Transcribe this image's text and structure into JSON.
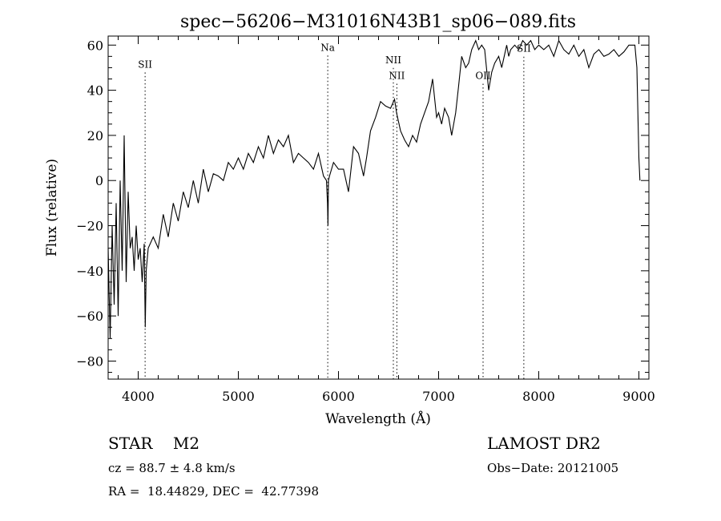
{
  "chart_data": {
    "type": "line",
    "title": "spec−56206−M31016N43B1_sp06−089.fits",
    "xlabel": "Wavelength (Å)",
    "ylabel": "Flux (relative)",
    "xlim": [
      3700,
      9100
    ],
    "ylim": [
      -88,
      64
    ],
    "x_ticks": [
      4000,
      5000,
      6000,
      7000,
      8000,
      9000
    ],
    "x_tick_labels": [
      "4000",
      "5000",
      "6000",
      "7000",
      "8000",
      "9000"
    ],
    "y_ticks": [
      -80,
      -60,
      -40,
      -20,
      0,
      20,
      40,
      60
    ],
    "y_tick_labels": [
      "−80",
      "−60",
      "−40",
      "−20",
      "0",
      "20",
      "40",
      "60"
    ],
    "grid": false,
    "series": [
      {
        "x": [
          3700,
          3720,
          3740,
          3760,
          3780,
          3800,
          3820,
          3840,
          3860,
          3880,
          3900,
          3920,
          3940,
          3960,
          3980,
          4000,
          4020,
          4040,
          4060,
          4070,
          4080,
          4100,
          4150,
          4200,
          4250,
          4300,
          4350,
          4400,
          4450,
          4500,
          4550,
          4600,
          4650,
          4700,
          4750,
          4800,
          4850,
          4900,
          4950,
          5000,
          5050,
          5100,
          5150,
          5200,
          5250,
          5300,
          5350,
          5400,
          5450,
          5500,
          5550,
          5600,
          5650,
          5700,
          5750,
          5800,
          5850,
          5880,
          5890,
          5895,
          5900,
          5910,
          5950,
          6000,
          6050,
          6100,
          6150,
          6200,
          6250,
          6280,
          6320,
          6370,
          6420,
          6470,
          6520,
          6560,
          6580,
          6620,
          6660,
          6700,
          6740,
          6780,
          6820,
          6860,
          6900,
          6940,
          6980,
          7000,
          7030,
          7060,
          7100,
          7130,
          7170,
          7200,
          7230,
          7270,
          7300,
          7330,
          7370,
          7400,
          7430,
          7460,
          7500,
          7530,
          7560,
          7600,
          7630,
          7660,
          7680,
          7700,
          7720,
          7760,
          7800,
          7840,
          7880,
          7920,
          7960,
          8000,
          8050,
          8100,
          8150,
          8200,
          8250,
          8300,
          8350,
          8400,
          8450,
          8500,
          8550,
          8600,
          8650,
          8700,
          8750,
          8800,
          8850,
          8900,
          8930,
          8960,
          8980,
          9000,
          9010
        ],
        "values": [
          -30,
          -70,
          -20,
          -55,
          -10,
          -60,
          0,
          -40,
          20,
          -45,
          -5,
          -30,
          -25,
          -40,
          -20,
          -35,
          -30,
          -45,
          -28,
          -65,
          -40,
          -30,
          -25,
          -30,
          -15,
          -25,
          -10,
          -18,
          -5,
          -12,
          0,
          -10,
          5,
          -5,
          3,
          2,
          0,
          8,
          5,
          10,
          5,
          12,
          8,
          15,
          10,
          20,
          12,
          18,
          15,
          20,
          8,
          12,
          10,
          8,
          5,
          12,
          2,
          0,
          -10,
          -20,
          0,
          2,
          8,
          5,
          5,
          -5,
          15,
          12,
          2,
          10,
          22,
          28,
          35,
          33,
          32,
          36,
          30,
          22,
          18,
          15,
          20,
          17,
          25,
          30,
          35,
          45,
          28,
          30,
          25,
          32,
          28,
          20,
          30,
          42,
          55,
          50,
          52,
          58,
          62,
          58,
          60,
          58,
          40,
          48,
          52,
          55,
          50,
          56,
          60,
          55,
          58,
          60,
          58,
          62,
          60,
          62,
          58,
          60,
          58,
          60,
          55,
          62,
          58,
          56,
          60,
          55,
          58,
          50,
          56,
          58,
          55,
          56,
          58,
          55,
          57,
          60,
          60,
          60,
          50,
          10,
          0
        ]
      }
    ],
    "annotations": [
      {
        "label": "SII",
        "x": 4069,
        "label_y": 50
      },
      {
        "label": "Na",
        "x": 5893,
        "label_y": 57.5
      },
      {
        "label": "NII",
        "x": 6548,
        "label_y": 52
      },
      {
        "label": "NII",
        "x": 6583,
        "label_y": 45
      },
      {
        "label": "OII",
        "x": 7444,
        "label_y": 45
      },
      {
        "label": "SII",
        "x": 7851,
        "label_y": 57
      }
    ]
  },
  "info": {
    "object": "STAR    M2",
    "survey": "LAMOST DR2",
    "velocity": "cz = 88.7 ± 4.8 km/s",
    "obs_date": "Obs−Date: 20121005",
    "coords": "RA =  18.44829, DEC =  42.77398"
  }
}
